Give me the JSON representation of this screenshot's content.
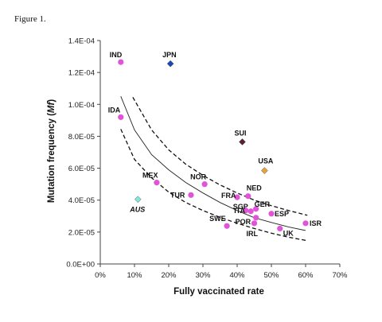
{
  "figure_label": "Figure 1.",
  "chart_data": {
    "type": "scatter",
    "title": "",
    "xlabel": "Fully vaccinated rate",
    "ylabel": "Mutation frequency (Mf)",
    "xlim": [
      0,
      0.7
    ],
    "ylim": [
      0,
      0.00014
    ],
    "x_ticks": [
      "0%",
      "10%",
      "20%",
      "30%",
      "40%",
      "50%",
      "60%",
      "70%"
    ],
    "y_ticks": [
      "0.0E+00",
      "2.0E-05",
      "4.0E-05",
      "6.0E-05",
      "8.0E-05",
      "1.0E-04",
      "1.2E-04",
      "1.4E-04"
    ],
    "grid": false,
    "legend": "none",
    "colors": {
      "default_point": "#e055d8",
      "JPN": "#1a47b8",
      "SUI": "#5c1f2c",
      "USA": "#e8a23c",
      "AUS": "#7fe8d8",
      "fit_line": "#222222",
      "band_line": "#111111",
      "axis": "#444444"
    },
    "points": [
      {
        "label": "IND",
        "x": 0.06,
        "y": 0.0001265,
        "marker": "circle",
        "color": "#e055d8"
      },
      {
        "label": "JPN",
        "x": 0.205,
        "y": 0.0001255,
        "marker": "diamond",
        "color": "#1a47b8"
      },
      {
        "label": "IDA",
        "x": 0.06,
        "y": 9.2e-05,
        "marker": "circle",
        "color": "#e055d8"
      },
      {
        "label": "SUI",
        "x": 0.415,
        "y": 7.65e-05,
        "marker": "diamond",
        "color": "#5c1f2c"
      },
      {
        "label": "USA",
        "x": 0.48,
        "y": 5.85e-05,
        "marker": "diamond",
        "color": "#e8a23c"
      },
      {
        "label": "MEX",
        "x": 0.165,
        "y": 5.1e-05,
        "marker": "circle",
        "color": "#e055d8"
      },
      {
        "label": "NOR",
        "x": 0.305,
        "y": 5e-05,
        "marker": "circle",
        "color": "#e055d8"
      },
      {
        "label": "AUS",
        "x": 0.11,
        "y": 4.05e-05,
        "marker": "diamond",
        "color": "#7fe8d8",
        "italic": true
      },
      {
        "label": "TUR",
        "x": 0.265,
        "y": 4.32e-05,
        "marker": "circle",
        "color": "#e055d8"
      },
      {
        "label": "FRA",
        "x": 0.4,
        "y": 4.18e-05,
        "marker": "circle",
        "color": "#e055d8"
      },
      {
        "label": "NED",
        "x": 0.432,
        "y": 4.25e-05,
        "marker": "circle",
        "color": "#e055d8"
      },
      {
        "label": "SGP",
        "x": 0.425,
        "y": 3.35e-05,
        "marker": "circle",
        "color": "#e055d8"
      },
      {
        "label": "GER",
        "x": 0.455,
        "y": 3.45e-05,
        "marker": "circle",
        "color": "#e055d8"
      },
      {
        "label": "ITA",
        "x": 0.44,
        "y": 3.3e-05,
        "marker": "circle",
        "color": "#e055d8"
      },
      {
        "label": "ESP",
        "x": 0.5,
        "y": 3.15e-05,
        "marker": "circle",
        "color": "#e055d8"
      },
      {
        "label": "POR",
        "x": 0.455,
        "y": 2.9e-05,
        "marker": "circle",
        "color": "#e055d8"
      },
      {
        "label": "SWE",
        "x": 0.37,
        "y": 2.38e-05,
        "marker": "circle",
        "color": "#e055d8"
      },
      {
        "label": "IRL",
        "x": 0.45,
        "y": 2.55e-05,
        "marker": "circle",
        "color": "#e055d8"
      },
      {
        "label": "ISR",
        "x": 0.6,
        "y": 2.55e-05,
        "marker": "circle",
        "color": "#e055d8"
      },
      {
        "label": "UK",
        "x": 0.525,
        "y": 2.22e-05,
        "marker": "circle",
        "color": "#e055d8"
      }
    ],
    "fit_curve": [
      [
        0.06,
        0.000105
      ],
      [
        0.1,
        8.4e-05
      ],
      [
        0.15,
        6.85e-05
      ],
      [
        0.2,
        5.9e-05
      ],
      [
        0.25,
        5.1e-05
      ],
      [
        0.3,
        4.45e-05
      ],
      [
        0.35,
        3.85e-05
      ],
      [
        0.4,
        3.35e-05
      ],
      [
        0.45,
        2.9e-05
      ],
      [
        0.5,
        2.6e-05
      ],
      [
        0.55,
        2.32e-05
      ],
      [
        0.6,
        2.1e-05
      ]
    ],
    "upper_band": [
      [
        0.095,
        0.0001045
      ],
      [
        0.15,
        8.4e-05
      ],
      [
        0.2,
        7.15e-05
      ],
      [
        0.25,
        6.25e-05
      ],
      [
        0.3,
        5.55e-05
      ],
      [
        0.35,
        4.95e-05
      ],
      [
        0.4,
        4.45e-05
      ],
      [
        0.45,
        4e-05
      ],
      [
        0.5,
        3.65e-05
      ],
      [
        0.55,
        3.35e-05
      ],
      [
        0.605,
        3.05e-05
      ]
    ],
    "lower_band": [
      [
        0.06,
        8.45e-05
      ],
      [
        0.1,
        6.55e-05
      ],
      [
        0.15,
        5.4e-05
      ],
      [
        0.2,
        4.5e-05
      ],
      [
        0.25,
        3.85e-05
      ],
      [
        0.3,
        3.35e-05
      ],
      [
        0.35,
        2.92e-05
      ],
      [
        0.4,
        2.55e-05
      ],
      [
        0.45,
        2.22e-05
      ],
      [
        0.5,
        1.93e-05
      ],
      [
        0.55,
        1.68e-05
      ],
      [
        0.6,
        1.48e-05
      ]
    ]
  }
}
